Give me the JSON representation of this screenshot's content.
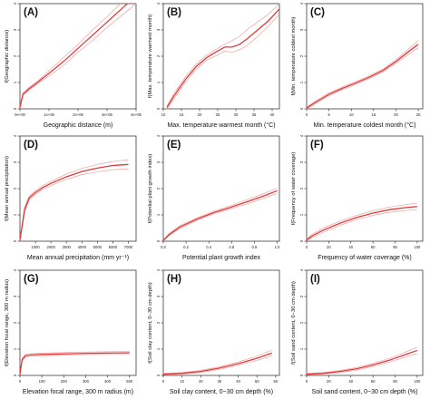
{
  "figure": {
    "colors": {
      "fit": "#e23a3a",
      "ci": "#f0a0a0"
    }
  },
  "chart_data": [
    {
      "type": "line",
      "panel": "(A)",
      "xlabel": "Geographic distance (m)",
      "ylabel": "f(Geographic distance)",
      "xlim": [
        0,
        4000000
      ],
      "ylim": [
        0,
        4
      ],
      "xticks": [
        0,
        1000000,
        2000000,
        3000000,
        4000000
      ],
      "xtick_labels": [
        "0e+00",
        "1e+06",
        "2e+06",
        "3e+06",
        "4e+06"
      ],
      "yticks": [
        0,
        1,
        2,
        3,
        4
      ],
      "ytick_labels": [
        "0",
        "1",
        "2",
        "3",
        "4"
      ],
      "x": [
        0,
        100000,
        300000,
        600000,
        1000000,
        1500000,
        2000000,
        2500000,
        3000000,
        3500000,
        4000000
      ],
      "series": [
        {
          "values": [
            0.05,
            0.55,
            0.75,
            1.0,
            1.35,
            1.8,
            2.3,
            2.8,
            3.3,
            3.8,
            4.3
          ]
        },
        {
          "values": [
            0.08,
            0.6,
            0.8,
            1.05,
            1.45,
            1.95,
            2.45,
            3.0,
            3.5,
            4.05,
            4.6
          ],
          "role": "ci"
        },
        {
          "values": [
            0.02,
            0.5,
            0.7,
            0.95,
            1.25,
            1.65,
            2.15,
            2.6,
            3.1,
            3.55,
            4.0
          ],
          "role": "ci"
        }
      ]
    },
    {
      "type": "line",
      "panel": "(B)",
      "xlabel": "Max. temperature warmest month (°C)",
      "ylabel": "f(Max. temperature warmest month)",
      "xlim": [
        10,
        42
      ],
      "ylim": [
        0,
        4
      ],
      "xticks": [
        10,
        15,
        20,
        25,
        30,
        35,
        40
      ],
      "xtick_labels": [
        "10",
        "15",
        "20",
        "25",
        "30",
        "35",
        "40"
      ],
      "yticks": [
        0,
        1,
        2,
        3,
        4
      ],
      "ytick_labels": [
        "0",
        "1",
        "2",
        "3",
        "4"
      ],
      "x": [
        11,
        13,
        16,
        19,
        22,
        25,
        27,
        29,
        31,
        33,
        36,
        39,
        42
      ],
      "series": [
        {
          "values": [
            0.05,
            0.5,
            1.1,
            1.6,
            1.95,
            2.2,
            2.35,
            2.35,
            2.45,
            2.65,
            3.0,
            3.35,
            3.8
          ]
        },
        {
          "values": [
            0.1,
            0.6,
            1.2,
            1.7,
            2.05,
            2.3,
            2.45,
            2.6,
            2.75,
            3.0,
            3.3,
            3.6,
            4.0
          ],
          "role": "ci"
        },
        {
          "values": [
            0.0,
            0.4,
            1.0,
            1.5,
            1.85,
            2.05,
            2.2,
            2.15,
            2.25,
            2.4,
            2.75,
            3.15,
            3.6
          ],
          "role": "ci"
        }
      ]
    },
    {
      "type": "line",
      "panel": "(C)",
      "xlabel": "Min. temperature coldest month (°C)",
      "ylabel": "f(Min. temperature coldest month)",
      "xlim": [
        0,
        26
      ],
      "ylim": [
        0,
        4
      ],
      "xticks": [
        0,
        5,
        10,
        15,
        20,
        25
      ],
      "xtick_labels": [
        "0",
        "5",
        "10",
        "15",
        "20",
        "25"
      ],
      "yticks": [
        0,
        1,
        2,
        3,
        4
      ],
      "ytick_labels": [
        "0",
        "1",
        "2",
        "3",
        "4"
      ],
      "x": [
        0,
        2,
        5,
        8,
        11,
        14,
        17,
        20,
        23,
        25
      ],
      "series": [
        {
          "values": [
            0.03,
            0.25,
            0.55,
            0.78,
            0.98,
            1.2,
            1.45,
            1.8,
            2.2,
            2.45
          ]
        },
        {
          "values": [
            0.06,
            0.3,
            0.6,
            0.83,
            1.03,
            1.25,
            1.5,
            1.87,
            2.3,
            2.6
          ],
          "role": "ci"
        },
        {
          "values": [
            0.0,
            0.2,
            0.5,
            0.73,
            0.93,
            1.15,
            1.4,
            1.73,
            2.1,
            2.32
          ],
          "role": "ci"
        }
      ]
    },
    {
      "type": "line",
      "panel": "(D)",
      "xlabel": "Mean annual precipitation (mm yr⁻¹)",
      "ylabel": "f(Mean annual precipitation)",
      "xlim": [
        0,
        7500
      ],
      "ylim": [
        0,
        4
      ],
      "xticks": [
        1000,
        2000,
        3000,
        4000,
        5000,
        6000,
        7000
      ],
      "xtick_labels": [
        "1000",
        "2000",
        "3000",
        "4000",
        "5000",
        "6000",
        "7000"
      ],
      "yticks": [
        0,
        1,
        2,
        3,
        4
      ],
      "ytick_labels": [
        "0",
        "1",
        "2",
        "3",
        "4"
      ],
      "x": [
        0,
        300,
        600,
        1000,
        1500,
        2000,
        3000,
        4000,
        5000,
        6000,
        7000
      ],
      "series": [
        {
          "values": [
            0.05,
            1.2,
            1.65,
            1.85,
            2.05,
            2.2,
            2.45,
            2.65,
            2.78,
            2.88,
            2.92
          ]
        },
        {
          "values": [
            0.08,
            1.3,
            1.72,
            1.92,
            2.12,
            2.28,
            2.55,
            2.77,
            2.92,
            3.03,
            3.1
          ],
          "role": "ci"
        },
        {
          "values": [
            0.02,
            1.1,
            1.58,
            1.78,
            1.98,
            2.12,
            2.35,
            2.53,
            2.64,
            2.72,
            2.75
          ],
          "role": "ci"
        }
      ]
    },
    {
      "type": "line",
      "panel": "(E)",
      "xlabel": "Potential plant growth index",
      "ylabel": "f(Potential plant growth index)",
      "xlim": [
        0,
        1.02
      ],
      "ylim": [
        0,
        4
      ],
      "xticks": [
        0,
        0.2,
        0.4,
        0.6,
        0.8,
        1.0
      ],
      "xtick_labels": [
        "0.0",
        "0.2",
        "0.4",
        "0.6",
        "0.8",
        "1.0"
      ],
      "yticks": [
        0,
        1,
        2,
        3,
        4
      ],
      "ytick_labels": [
        "0",
        "1",
        "2",
        "3",
        "4"
      ],
      "x": [
        0,
        0.05,
        0.15,
        0.3,
        0.45,
        0.6,
        0.75,
        0.9,
        1.0
      ],
      "series": [
        {
          "values": [
            0.03,
            0.25,
            0.55,
            0.85,
            1.1,
            1.3,
            1.52,
            1.75,
            1.92
          ]
        },
        {
          "values": [
            0.05,
            0.29,
            0.6,
            0.9,
            1.15,
            1.36,
            1.6,
            1.84,
            2.02
          ],
          "role": "ci"
        },
        {
          "values": [
            0.01,
            0.21,
            0.5,
            0.8,
            1.05,
            1.24,
            1.44,
            1.66,
            1.82
          ],
          "role": "ci"
        }
      ]
    },
    {
      "type": "line",
      "panel": "(F)",
      "xlabel": "Frequency of water coverage (%)",
      "ylabel": "f(Frequency of water coverage)",
      "xlim": [
        0,
        105
      ],
      "ylim": [
        0,
        4
      ],
      "xticks": [
        0,
        20,
        40,
        60,
        80,
        100
      ],
      "xtick_labels": [
        "0",
        "20",
        "40",
        "60",
        "80",
        "100"
      ],
      "yticks": [
        0,
        1,
        2,
        3,
        4
      ],
      "ytick_labels": [
        "0",
        "1",
        "2",
        "3",
        "4"
      ],
      "x": [
        0,
        5,
        15,
        30,
        45,
        60,
        75,
        90,
        100
      ],
      "series": [
        {
          "values": [
            0.05,
            0.2,
            0.42,
            0.68,
            0.9,
            1.07,
            1.2,
            1.28,
            1.32
          ]
        },
        {
          "values": [
            0.08,
            0.26,
            0.5,
            0.76,
            0.98,
            1.16,
            1.3,
            1.39,
            1.45
          ],
          "role": "ci"
        },
        {
          "values": [
            0.02,
            0.14,
            0.34,
            0.6,
            0.82,
            0.98,
            1.1,
            1.17,
            1.2
          ],
          "role": "ci"
        }
      ]
    },
    {
      "type": "line",
      "panel": "(G)",
      "xlabel": "Elevation focal range, 300 m radius (m)",
      "ylabel": "f(Elevation focal range, 300 m radius)",
      "xlim": [
        0,
        530
      ],
      "ylim": [
        0,
        4
      ],
      "xticks": [
        0,
        100,
        200,
        300,
        400,
        500
      ],
      "xtick_labels": [
        "0",
        "100",
        "200",
        "300",
        "400",
        "500"
      ],
      "yticks": [
        0,
        1,
        2,
        3,
        4
      ],
      "ytick_labels": [
        "0",
        "1",
        "2",
        "3",
        "4"
      ],
      "x": [
        0,
        10,
        25,
        50,
        100,
        200,
        300,
        400,
        500
      ],
      "series": [
        {
          "values": [
            0.05,
            0.6,
            0.75,
            0.78,
            0.8,
            0.82,
            0.84,
            0.85,
            0.86
          ]
        },
        {
          "values": [
            0.08,
            0.65,
            0.8,
            0.83,
            0.85,
            0.87,
            0.89,
            0.9,
            0.92
          ],
          "role": "ci"
        },
        {
          "values": [
            0.02,
            0.55,
            0.7,
            0.73,
            0.75,
            0.77,
            0.79,
            0.8,
            0.8
          ],
          "role": "ci"
        }
      ]
    },
    {
      "type": "line",
      "panel": "(H)",
      "xlabel": "Soil clay content, 0−30 cm depth (%)",
      "ylabel": "f(Soil clay content, 0−30 cm depth)",
      "xlim": [
        0,
        62
      ],
      "ylim": [
        0,
        4
      ],
      "xticks": [
        0,
        10,
        20,
        30,
        40,
        50,
        60
      ],
      "xtick_labels": [
        "0",
        "10",
        "20",
        "30",
        "40",
        "50",
        "60"
      ],
      "yticks": [
        0,
        1,
        2,
        3,
        4
      ],
      "ytick_labels": [
        "0",
        "1",
        "2",
        "3",
        "4"
      ],
      "x": [
        0,
        10,
        20,
        30,
        40,
        50,
        58
      ],
      "series": [
        {
          "values": [
            0.05,
            0.08,
            0.15,
            0.28,
            0.45,
            0.65,
            0.85
          ]
        },
        {
          "values": [
            0.07,
            0.11,
            0.19,
            0.33,
            0.51,
            0.73,
            0.96
          ],
          "role": "ci"
        },
        {
          "values": [
            0.03,
            0.05,
            0.11,
            0.23,
            0.39,
            0.57,
            0.74
          ],
          "role": "ci"
        }
      ]
    },
    {
      "type": "line",
      "panel": "(I)",
      "xlabel": "Soil sand content, 0−30 cm depth (%)",
      "ylabel": "f(Soil sand content, 0−30 cm depth)",
      "xlim": [
        0,
        105
      ],
      "ylim": [
        0,
        4
      ],
      "xticks": [
        0,
        20,
        40,
        60,
        80,
        100
      ],
      "xtick_labels": [
        "0",
        "20",
        "40",
        "60",
        "80",
        "100"
      ],
      "yticks": [
        0,
        1,
        2,
        3,
        4
      ],
      "ytick_labels": [
        "0",
        "1",
        "2",
        "3",
        "4"
      ],
      "x": [
        0,
        15,
        30,
        45,
        60,
        75,
        90,
        100
      ],
      "series": [
        {
          "values": [
            0.05,
            0.08,
            0.15,
            0.25,
            0.4,
            0.58,
            0.8,
            0.95
          ]
        },
        {
          "values": [
            0.07,
            0.11,
            0.19,
            0.3,
            0.46,
            0.65,
            0.9,
            1.07
          ],
          "role": "ci"
        },
        {
          "values": [
            0.03,
            0.05,
            0.11,
            0.2,
            0.34,
            0.51,
            0.7,
            0.83
          ],
          "role": "ci"
        }
      ]
    }
  ]
}
